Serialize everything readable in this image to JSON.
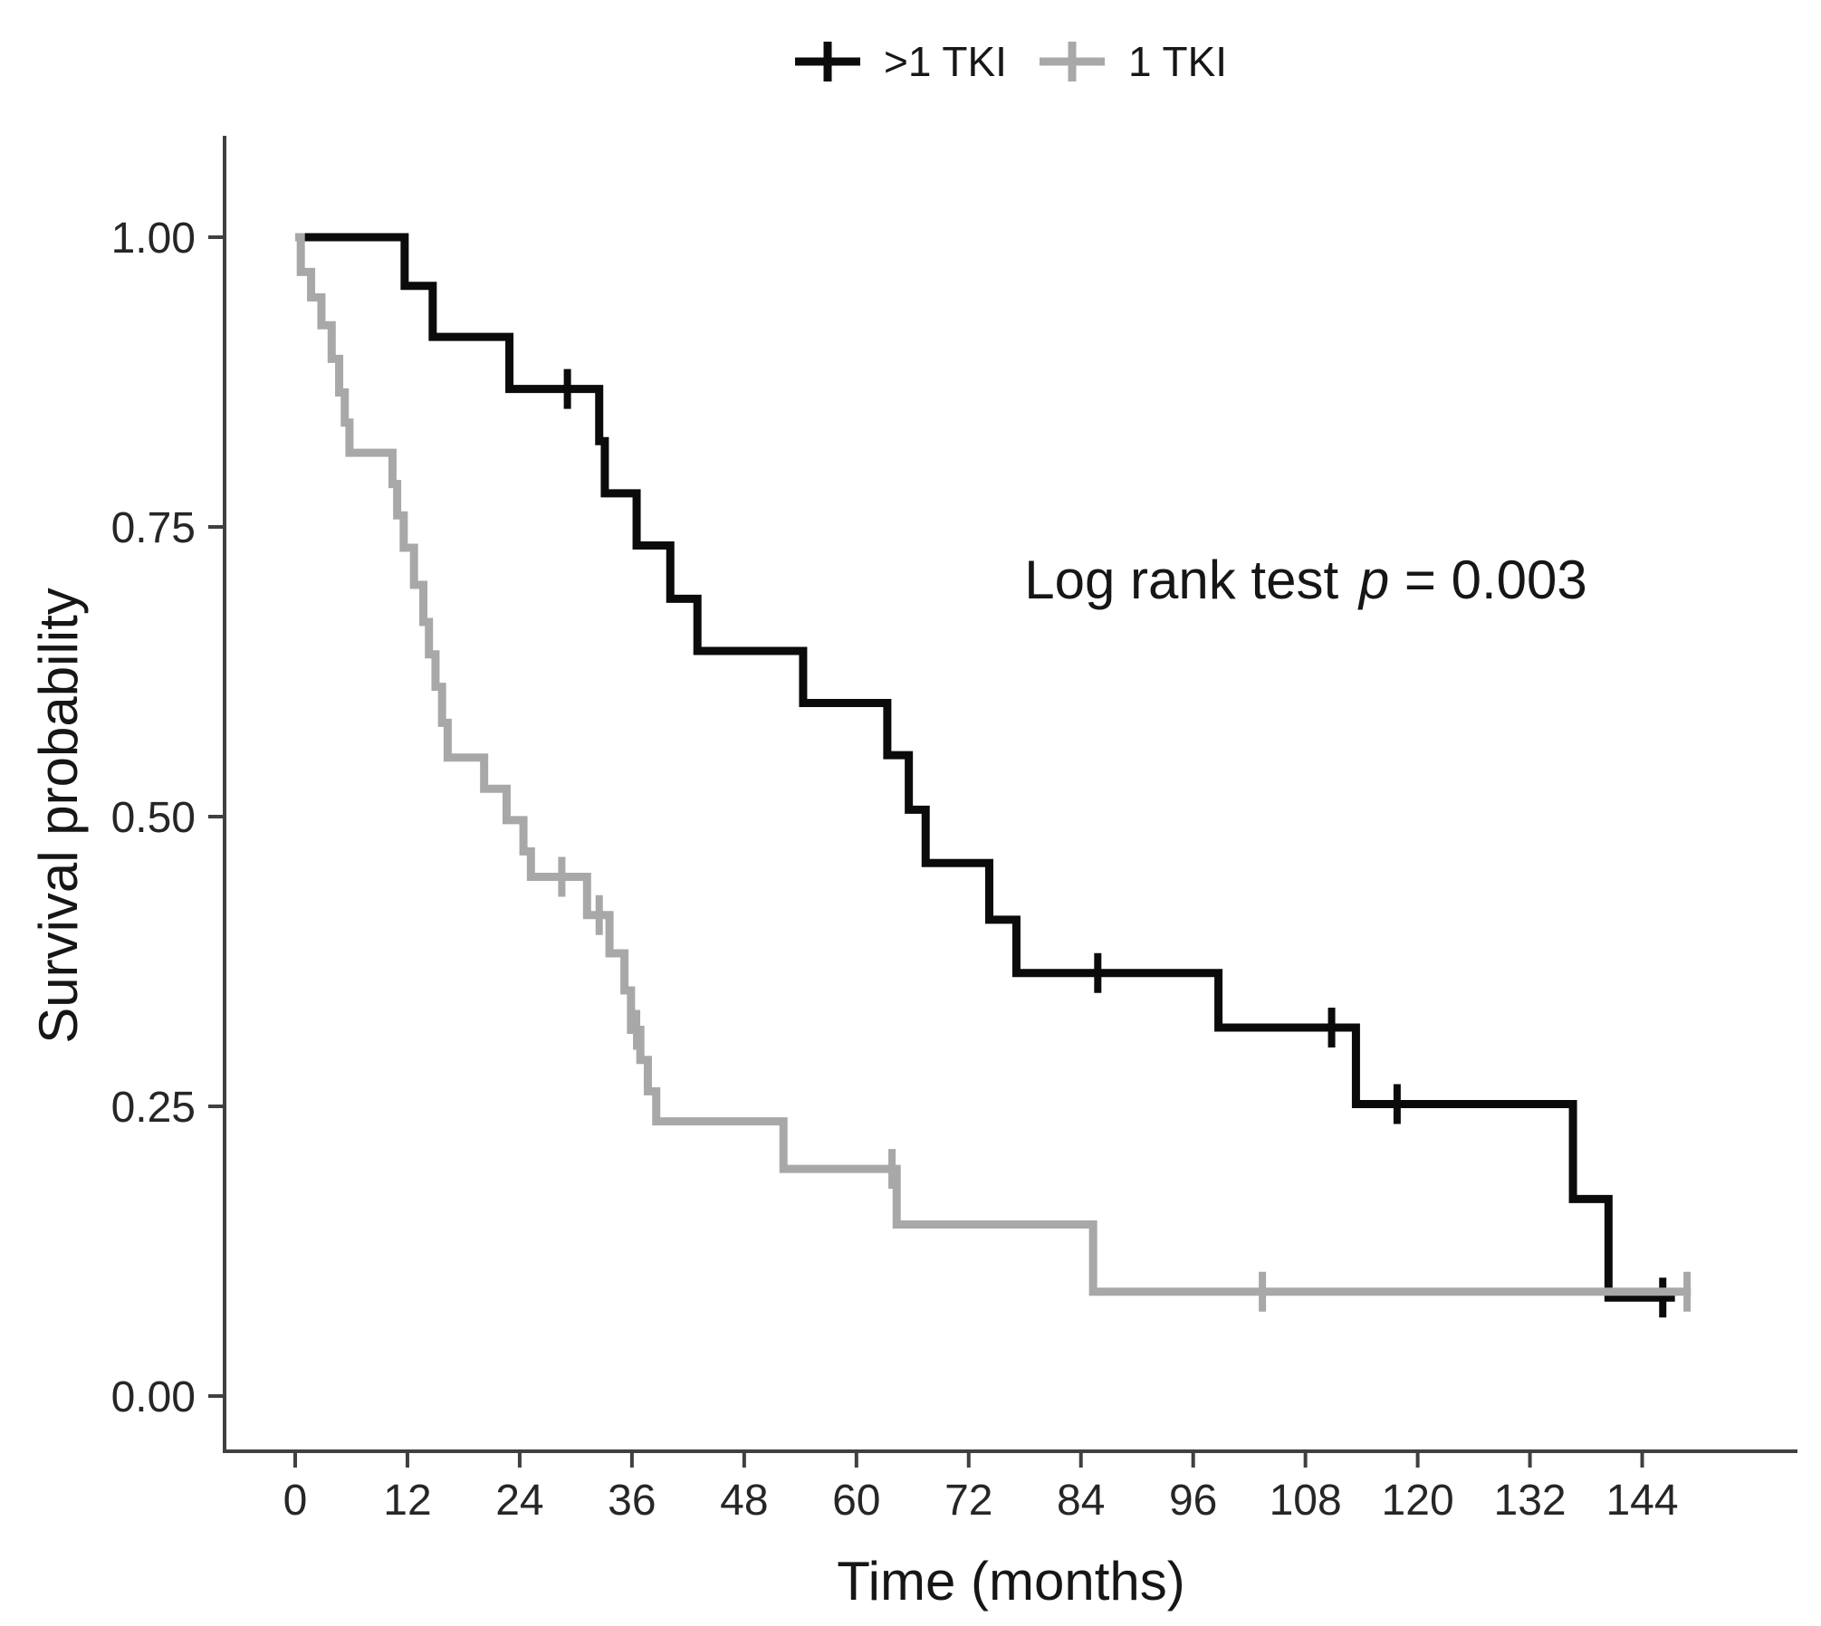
{
  "page": {
    "background": "#ffffff"
  },
  "legend": {
    "position": "top",
    "items": [
      {
        "label": ">1 TKI",
        "color": "#0b0b0b"
      },
      {
        "label": "1 TKI",
        "color": "#a8a8a8"
      }
    ]
  },
  "annotation": {
    "prefix": "Log rank test",
    "p": "p",
    "suffix": " = 0.003"
  },
  "axes": {
    "x_title": "Time (months)",
    "y_title": "Survival probability"
  },
  "chart_data": {
    "type": "line",
    "subtype": "kaplan-meier-step",
    "title": "",
    "xlabel": "Time (months)",
    "ylabel": "Survival probability",
    "xlim": [
      0,
      150
    ],
    "ylim": [
      0,
      1
    ],
    "grid": false,
    "legend_position": "top",
    "annotation": "Log rank test p = 0.003",
    "x_ticks": [
      0,
      12,
      24,
      36,
      48,
      60,
      72,
      84,
      96,
      108,
      120,
      132,
      144
    ],
    "y_ticks": [
      {
        "label": "1.00",
        "value": 1.0
      },
      {
        "label": "0.75",
        "value": 0.75
      },
      {
        "label": "0.50",
        "value": 0.5
      },
      {
        "label": "0.25",
        "value": 0.25
      },
      {
        "label": "0.00",
        "value": 0.0
      }
    ],
    "series": [
      {
        "name": ">1 TKI",
        "color": "#0b0b0b",
        "stroke_width": 9,
        "end_time": 147.5,
        "steps": [
          [
            0,
            1.0
          ],
          [
            11.7,
            0.958
          ],
          [
            14.7,
            0.914
          ],
          [
            22.9,
            0.869
          ],
          [
            32.5,
            0.824
          ],
          [
            33.1,
            0.779
          ],
          [
            36.5,
            0.734
          ],
          [
            40.1,
            0.688
          ],
          [
            43.0,
            0.643
          ],
          [
            54.3,
            0.598
          ],
          [
            63.3,
            0.553
          ],
          [
            65.6,
            0.506
          ],
          [
            67.4,
            0.46
          ],
          [
            74.2,
            0.411
          ],
          [
            77.1,
            0.365
          ],
          [
            98.7,
            0.318
          ],
          [
            113.4,
            0.252
          ],
          [
            136.6,
            0.17
          ],
          [
            140.4,
            0.085
          ]
        ],
        "censors": [
          [
            29.1,
            0.869
          ],
          [
            85.8,
            0.365
          ],
          [
            110.8,
            0.318
          ],
          [
            117.8,
            0.252
          ],
          [
            146.2,
            0.085
          ]
        ]
      },
      {
        "name": "1 TKI",
        "color": "#a8a8a8",
        "stroke_width": 9,
        "end_time": 149.2,
        "steps": [
          [
            0,
            1.0
          ],
          [
            0.6,
            0.97
          ],
          [
            1.7,
            0.948
          ],
          [
            2.8,
            0.924
          ],
          [
            3.9,
            0.895
          ],
          [
            4.7,
            0.866
          ],
          [
            5.3,
            0.84
          ],
          [
            5.8,
            0.814
          ],
          [
            10.4,
            0.787
          ],
          [
            10.9,
            0.76
          ],
          [
            11.6,
            0.732
          ],
          [
            12.7,
            0.7
          ],
          [
            13.7,
            0.668
          ],
          [
            14.3,
            0.64
          ],
          [
            15.0,
            0.612
          ],
          [
            15.7,
            0.581
          ],
          [
            16.3,
            0.551
          ],
          [
            20.2,
            0.524
          ],
          [
            22.6,
            0.497
          ],
          [
            24.4,
            0.47
          ],
          [
            25.2,
            0.448
          ],
          [
            31.2,
            0.415
          ],
          [
            33.6,
            0.382
          ],
          [
            35.2,
            0.35
          ],
          [
            35.9,
            0.316
          ],
          [
            36.9,
            0.29
          ],
          [
            37.7,
            0.263
          ],
          [
            38.6,
            0.237
          ],
          [
            52.2,
            0.196
          ],
          [
            64.3,
            0.148
          ],
          [
            85.3,
            0.09
          ]
        ],
        "censors": [
          [
            28.5,
            0.448
          ],
          [
            32.5,
            0.415
          ],
          [
            36.5,
            0.316
          ],
          [
            63.8,
            0.196
          ],
          [
            103.4,
            0.09
          ],
          [
            148.8,
            0.09
          ]
        ]
      }
    ]
  }
}
